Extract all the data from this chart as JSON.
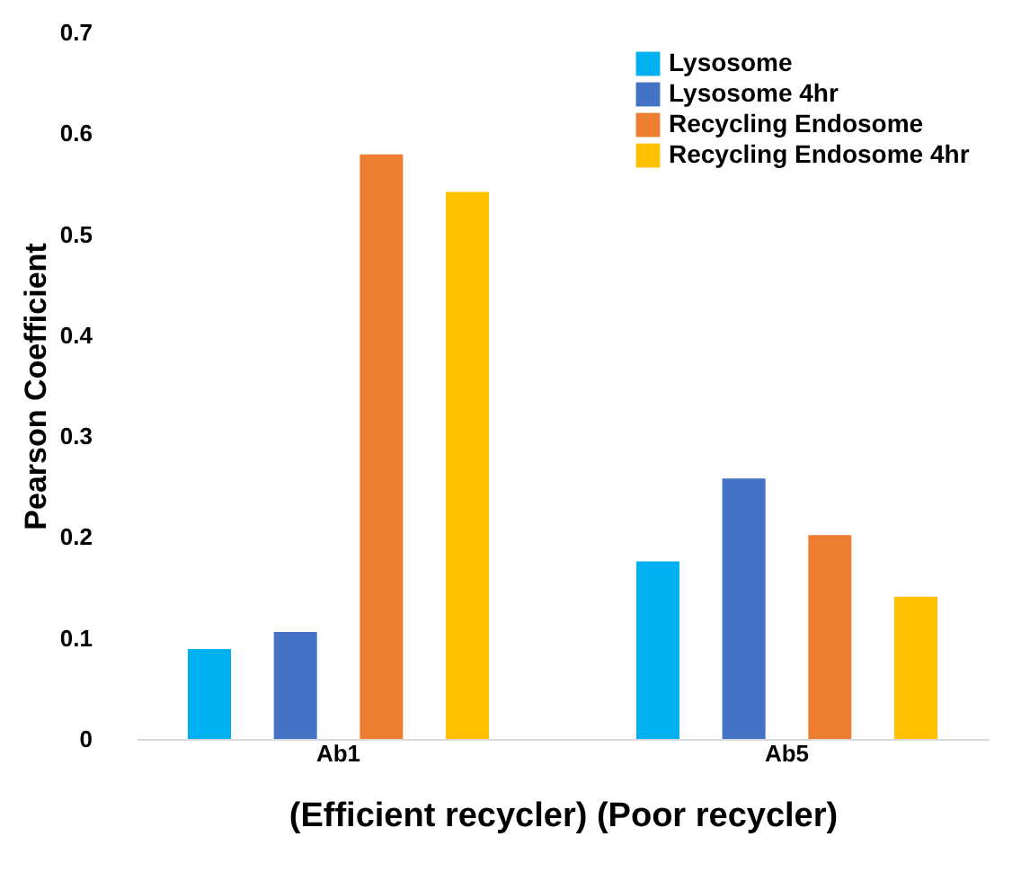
{
  "chart_data": {
    "type": "bar",
    "categories": [
      "Ab1",
      "Ab5"
    ],
    "series": [
      {
        "name": "Lysosome",
        "color": "#00b0f0",
        "values": [
          0.089,
          0.176
        ]
      },
      {
        "name": "Lysosome 4hr",
        "color": "#4472c4",
        "values": [
          0.106,
          0.258
        ]
      },
      {
        "name": "Recycling Endosome",
        "color": "#ed7d31",
        "values": [
          0.579,
          0.202
        ]
      },
      {
        "name": "Recycling Endosome 4hr",
        "color": "#ffc000",
        "values": [
          0.542,
          0.141
        ]
      }
    ],
    "ylabel": "Pearson Coefficient",
    "xlabel": "(Efficient recycler) (Poor recycler)",
    "ylim": [
      0,
      0.7
    ],
    "yticks": [
      0,
      0.1,
      0.2,
      0.3,
      0.4,
      0.5,
      0.6,
      0.7
    ],
    "grid": false,
    "legend": "top right"
  }
}
